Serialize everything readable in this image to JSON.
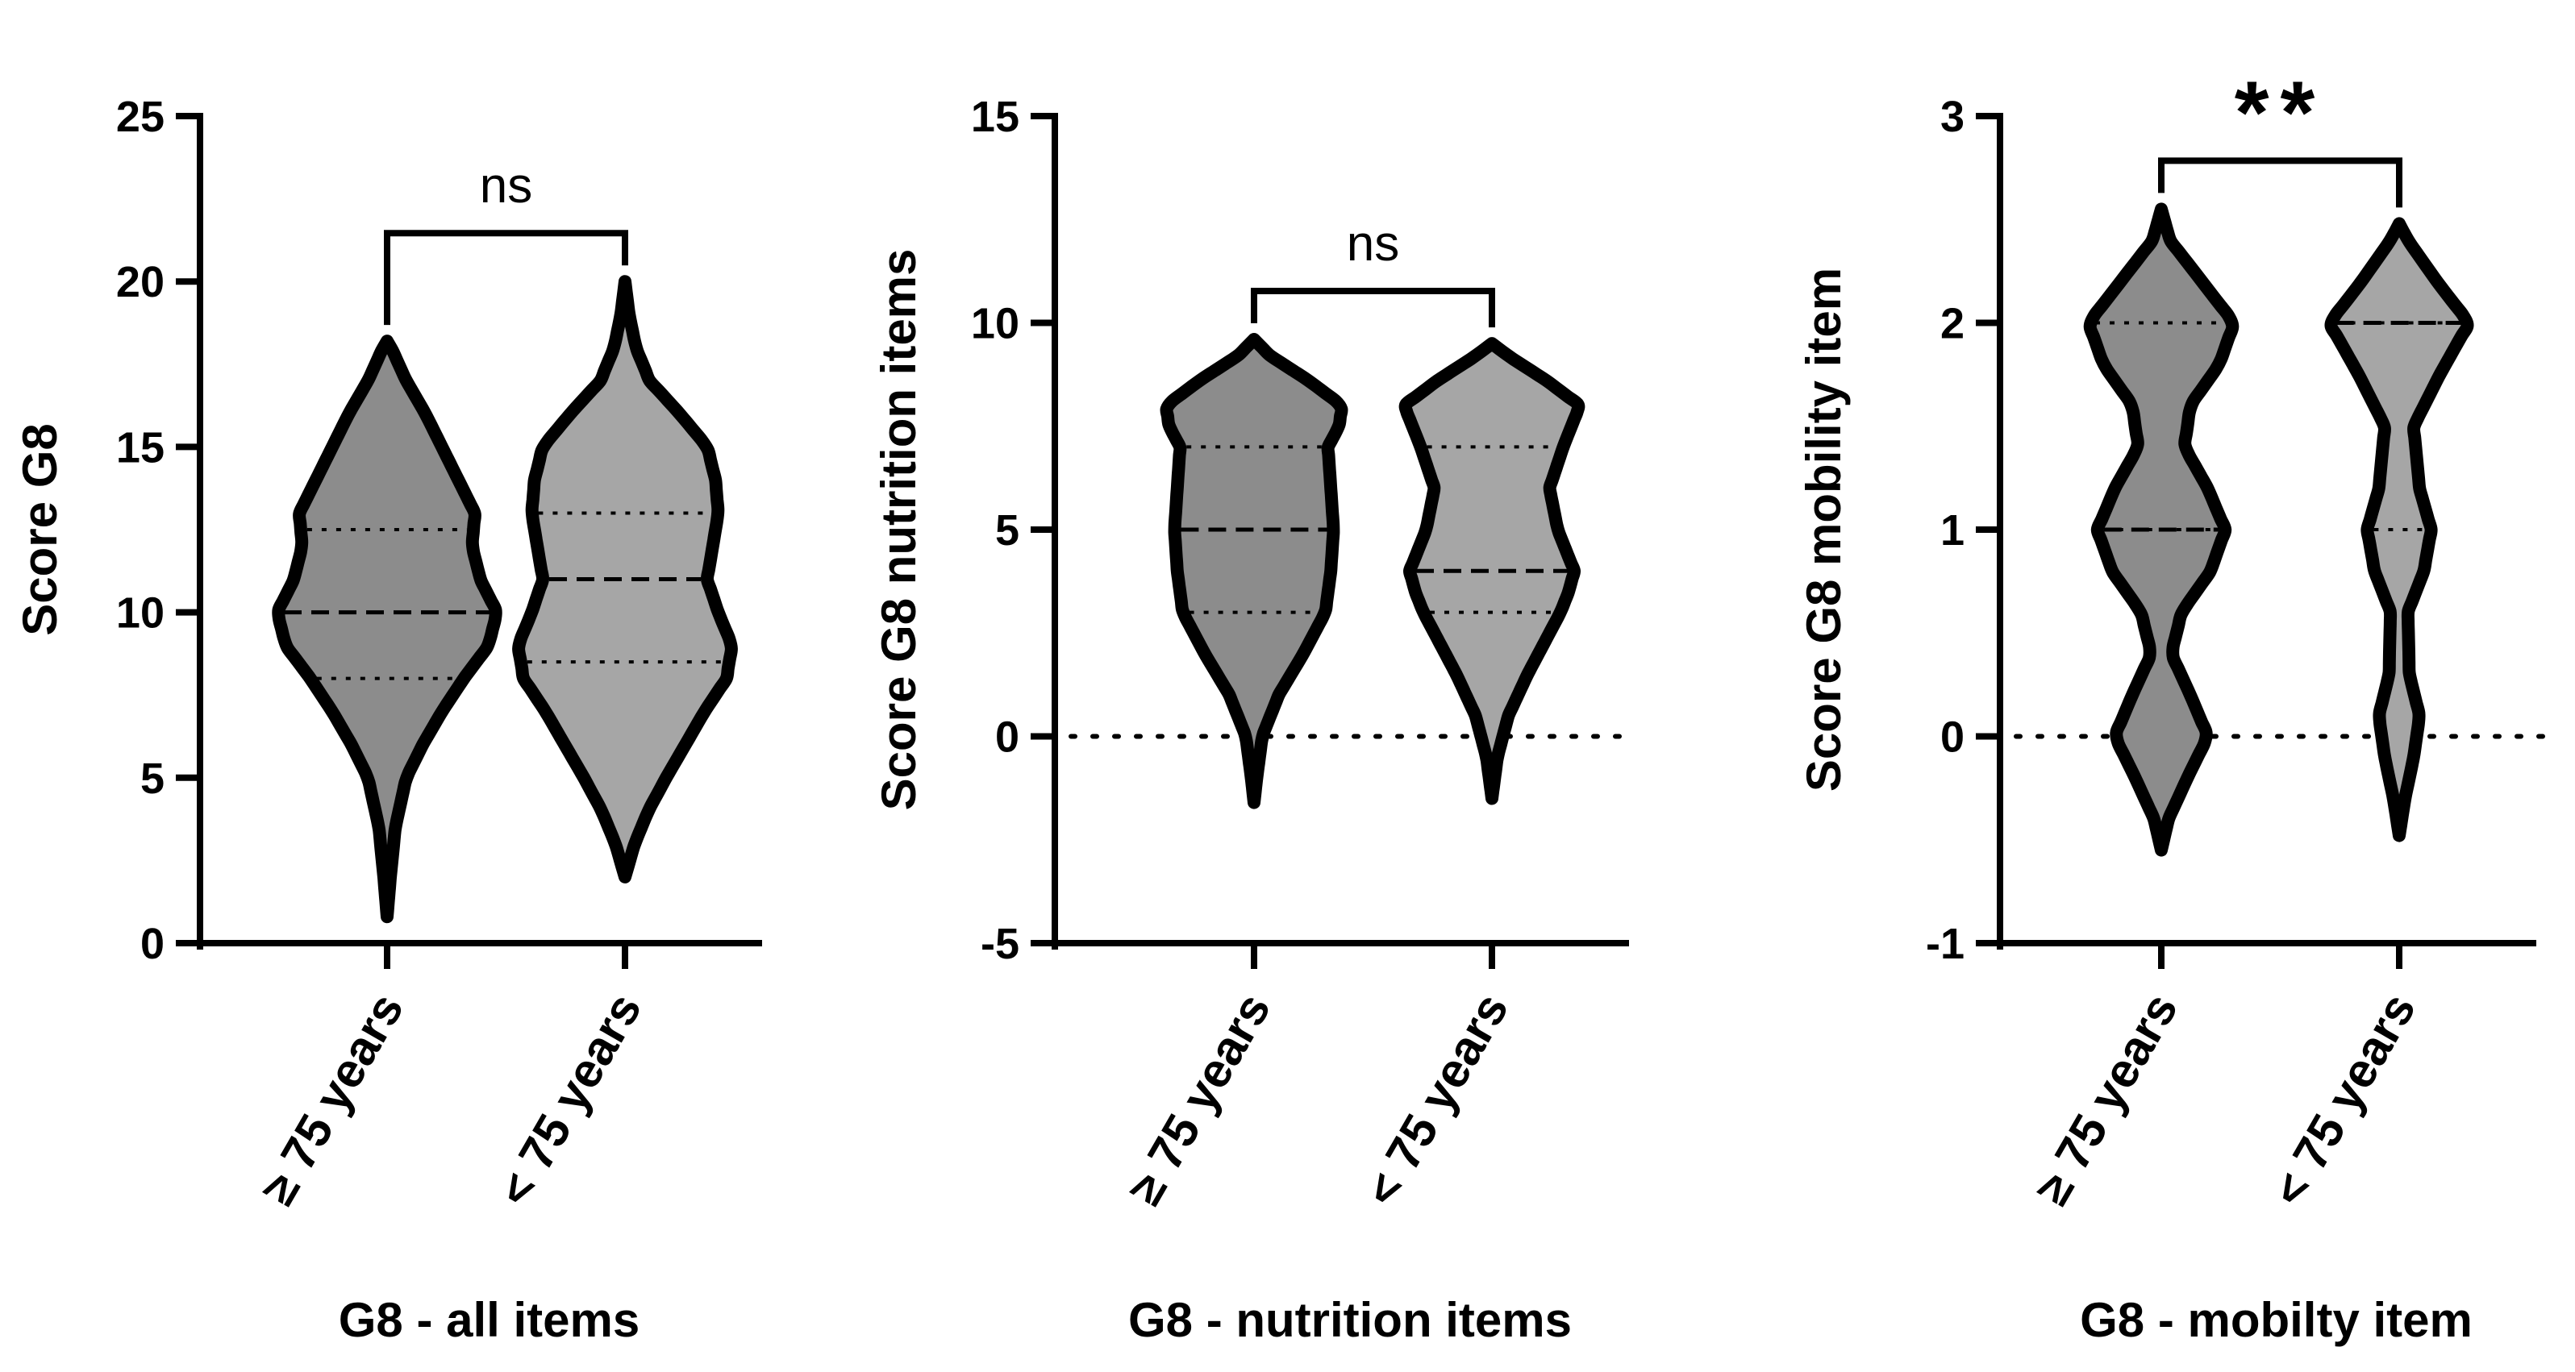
{
  "colors": {
    "older_fill": "#8c8c8c",
    "younger_fill": "#a6a6a6",
    "outline": "#000000"
  },
  "chart_data": [
    {
      "type": "violin",
      "title": "",
      "xlabel": "G8 - all items",
      "ylabel": "Score G8",
      "ylim": [
        0,
        25
      ],
      "yticks": [
        "0",
        "5",
        "10",
        "15",
        "20",
        "25"
      ],
      "categories": [
        "≥ 75 years",
        "< 75 years"
      ],
      "zero_line": false,
      "significance": "ns",
      "series": [
        {
          "category": "≥ 75 years",
          "median": 10,
          "q1": 8,
          "q3": 12.5,
          "min": 0.8,
          "max": 18.2,
          "profile": [
            [
              0.8,
              0
            ],
            [
              2,
              0.012
            ],
            [
              3.5,
              0.03
            ],
            [
              5,
              0.07
            ],
            [
              6,
              0.13
            ],
            [
              7,
              0.2
            ],
            [
              8,
              0.28
            ],
            [
              9,
              0.37
            ],
            [
              10,
              0.4
            ],
            [
              11,
              0.34
            ],
            [
              12,
              0.31
            ],
            [
              13,
              0.32
            ],
            [
              14,
              0.26
            ],
            [
              15,
              0.2
            ],
            [
              16,
              0.14
            ],
            [
              17,
              0.07
            ],
            [
              18,
              0.015
            ],
            [
              18.2,
              0
            ]
          ]
        },
        {
          "category": "< 75 years",
          "median": 11,
          "q1": 8.5,
          "q3": 13,
          "min": 2,
          "max": 20,
          "profile": [
            [
              2,
              0
            ],
            [
              3,
              0.035
            ],
            [
              4,
              0.085
            ],
            [
              5,
              0.15
            ],
            [
              6,
              0.22
            ],
            [
              7,
              0.29
            ],
            [
              8,
              0.37
            ],
            [
              9,
              0.39
            ],
            [
              10,
              0.34
            ],
            [
              11,
              0.3
            ],
            [
              12,
              0.32
            ],
            [
              13,
              0.34
            ],
            [
              14,
              0.33
            ],
            [
              15,
              0.3
            ],
            [
              16,
              0.2
            ],
            [
              17,
              0.09
            ],
            [
              18,
              0.04
            ],
            [
              19,
              0.015
            ],
            [
              20,
              0
            ]
          ]
        }
      ]
    },
    {
      "type": "violin",
      "title": "",
      "xlabel": "G8 - nutrition items",
      "ylabel": "Score  G8 nutrition items",
      "ylim": [
        -5,
        15
      ],
      "yticks": [
        "-5",
        "0",
        "5",
        "10",
        "15"
      ],
      "categories": [
        "≥ 75 years",
        "< 75 years"
      ],
      "zero_line": true,
      "significance": "ns",
      "series": [
        {
          "category": "≥ 75 years",
          "median": 5,
          "q1": 3,
          "q3": 7,
          "min": -1.6,
          "max": 9.6,
          "profile": [
            [
              -1.6,
              0
            ],
            [
              -1,
              0.01
            ],
            [
              0,
              0.03
            ],
            [
              1,
              0.09
            ],
            [
              2,
              0.18
            ],
            [
              3,
              0.26
            ],
            [
              4,
              0.28
            ],
            [
              5,
              0.29
            ],
            [
              6,
              0.28
            ],
            [
              7,
              0.27
            ],
            [
              7.5,
              0.31
            ],
            [
              8,
              0.32
            ],
            [
              8.6,
              0.2
            ],
            [
              9.2,
              0.06
            ],
            [
              9.6,
              0
            ]
          ]
        },
        {
          "category": "< 75 years",
          "median": 4,
          "q1": 3,
          "q3": 7,
          "min": -1.5,
          "max": 9.5,
          "profile": [
            [
              -1.5,
              0
            ],
            [
              -0.5,
              0.02
            ],
            [
              0.5,
              0.06
            ],
            [
              1.5,
              0.13
            ],
            [
              2.5,
              0.21
            ],
            [
              3,
              0.25
            ],
            [
              3.5,
              0.28
            ],
            [
              4,
              0.3
            ],
            [
              5,
              0.24
            ],
            [
              6,
              0.21
            ],
            [
              7,
              0.26
            ],
            [
              8,
              0.32
            ],
            [
              8.6,
              0.2
            ],
            [
              9.2,
              0.06
            ],
            [
              9.5,
              0
            ]
          ]
        }
      ]
    },
    {
      "type": "violin",
      "title": "",
      "xlabel": "G8 - mobilty item",
      "ylabel": "Score G8 mobility item",
      "ylim": [
        -1,
        3
      ],
      "yticks": [
        "-1",
        "0",
        "1",
        "2",
        "3"
      ],
      "categories": [
        "≥ 75 years",
        "< 75 years"
      ],
      "zero_line": true,
      "significance": "**",
      "series": [
        {
          "category": "≥ 75 years",
          "median": 1,
          "q1": 1,
          "q3": 2,
          "min": -0.55,
          "max": 2.55,
          "profile": [
            [
              -0.55,
              0
            ],
            [
              -0.4,
              0.025
            ],
            [
              -0.2,
              0.09
            ],
            [
              0,
              0.16
            ],
            [
              0.2,
              0.1
            ],
            [
              0.4,
              0.035
            ],
            [
              0.6,
              0.07
            ],
            [
              0.8,
              0.17
            ],
            [
              1,
              0.22
            ],
            [
              1.2,
              0.16
            ],
            [
              1.4,
              0.08
            ],
            [
              1.6,
              0.1
            ],
            [
              1.8,
              0.2
            ],
            [
              2,
              0.25
            ],
            [
              2.2,
              0.14
            ],
            [
              2.4,
              0.03
            ],
            [
              2.55,
              0
            ]
          ]
        },
        {
          "category": "< 75 years",
          "median": 2,
          "q1": 1,
          "q3": 2,
          "min": -0.48,
          "max": 2.48,
          "profile": [
            [
              -0.48,
              0
            ],
            [
              -0.3,
              0.02
            ],
            [
              -0.1,
              0.05
            ],
            [
              0.1,
              0.07
            ],
            [
              0.3,
              0.035
            ],
            [
              0.6,
              0.03
            ],
            [
              0.8,
              0.085
            ],
            [
              1,
              0.11
            ],
            [
              1.2,
              0.07
            ],
            [
              1.5,
              0.05
            ],
            [
              1.75,
              0.14
            ],
            [
              2,
              0.24
            ],
            [
              2.2,
              0.13
            ],
            [
              2.4,
              0.03
            ],
            [
              2.48,
              0
            ]
          ]
        }
      ]
    }
  ]
}
